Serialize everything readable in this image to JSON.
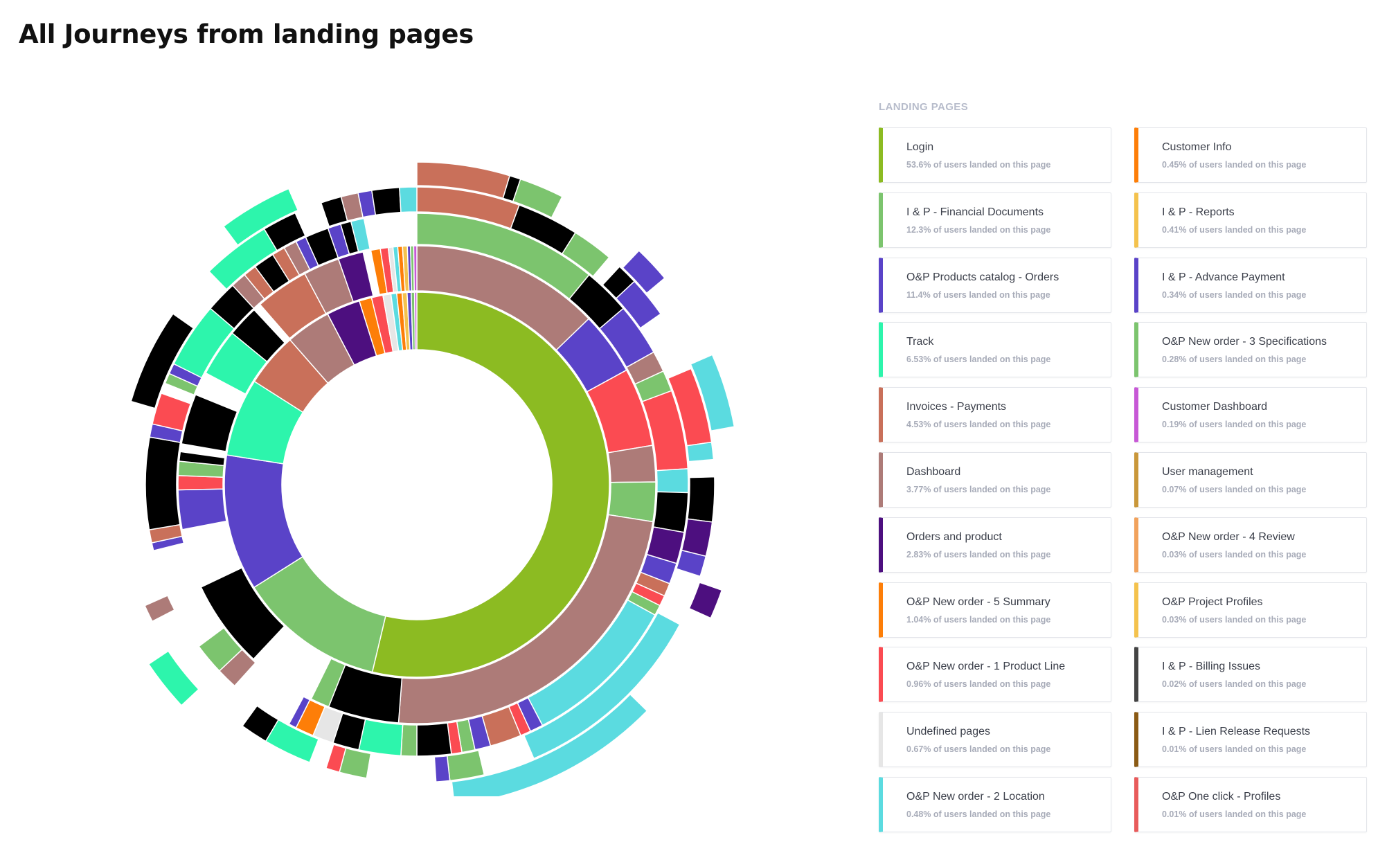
{
  "title": "All Journeys from landing pages",
  "legend_header": "LANDING PAGES",
  "colors": {
    "accent": "#8cbb22",
    "card_border": "#e3e5ea",
    "muted_text": "#a7abb8"
  },
  "landing_pages": [
    {
      "name": "Login",
      "percent": 53.6,
      "desc": "53.6% of users landed on this page",
      "color": "#8cbb22"
    },
    {
      "name": "I & P - Financial Documents",
      "percent": 12.3,
      "desc": "12.3% of users landed on this page",
      "color": "#7cc46e"
    },
    {
      "name": "O&P Products catalog - Orders",
      "percent": 11.4,
      "desc": "11.4% of users landed on this page",
      "color": "#5a43c8"
    },
    {
      "name": "Track",
      "percent": 6.53,
      "desc": "6.53% of users landed on this page",
      "color": "#2df5ac"
    },
    {
      "name": "Invoices - Payments",
      "percent": 4.53,
      "desc": "4.53% of users landed on this page",
      "color": "#c9705a"
    },
    {
      "name": "Dashboard",
      "percent": 3.77,
      "desc": "3.77% of users landed on this page",
      "color": "#ad7b78"
    },
    {
      "name": "Orders and product",
      "percent": 2.83,
      "desc": "2.83% of users landed on this page",
      "color": "#4d0f7f"
    },
    {
      "name": "O&P New order - 5 Summary",
      "percent": 1.04,
      "desc": "1.04% of users landed on this page",
      "color": "#fd7e08"
    },
    {
      "name": "O&P New order - 1 Product Line",
      "percent": 0.96,
      "desc": "0.96% of users landed on this page",
      "color": "#fb4b52"
    },
    {
      "name": "Undefined pages",
      "percent": 0.67,
      "desc": "0.67% of users landed on this page",
      "color": "#e6e6e6"
    },
    {
      "name": "O&P New order - 2 Location",
      "percent": 0.48,
      "desc": "0.48% of users landed on this page",
      "color": "#5bdbe0"
    },
    {
      "name": "Customer Info",
      "percent": 0.45,
      "desc": "0.45% of users landed on this page",
      "color": "#fd7e08"
    },
    {
      "name": "I & P - Reports",
      "percent": 0.41,
      "desc": "0.41% of users landed on this page",
      "color": "#f4c24d"
    },
    {
      "name": "I & P - Advance Payment",
      "percent": 0.34,
      "desc": "0.34% of users landed on this page",
      "color": "#5a43c8"
    },
    {
      "name": "O&P New order - 3 Specifications",
      "percent": 0.28,
      "desc": "0.28% of users landed on this page",
      "color": "#7cc46e"
    },
    {
      "name": "Customer Dashboard",
      "percent": 0.19,
      "desc": "0.19% of users landed on this page",
      "color": "#c758d6"
    },
    {
      "name": "User management",
      "percent": 0.07,
      "desc": "0.07% of users landed on this page",
      "color": "#c9973a"
    },
    {
      "name": "O&P New order - 4 Review",
      "percent": 0.03,
      "desc": "0.03% of users landed on this page",
      "color": "#f1a25c"
    },
    {
      "name": "O&P Project Profiles",
      "percent": 0.03,
      "desc": "0.03% of users landed on this page",
      "color": "#f4c24d"
    },
    {
      "name": "I & P - Billing Issues",
      "percent": 0.02,
      "desc": "0.02% of users landed on this page",
      "color": "#444444"
    },
    {
      "name": "I & P - Lien Release Requests",
      "percent": 0.01,
      "desc": "0.01% of users landed on this page",
      "color": "#8a5a14"
    },
    {
      "name": "O&P One click - Profiles",
      "percent": 0.01,
      "desc": "0.01% of users landed on this page",
      "color": "#e85b5b"
    }
  ],
  "chart_data": {
    "type": "sunburst",
    "title": "All Journeys from landing pages",
    "legend_position": "right",
    "rings": [
      [
        {
          "color": "#8cbb22",
          "value": 53.6
        },
        {
          "color": "#7cc46e",
          "value": 12.3
        },
        {
          "color": "#5a43c8",
          "value": 11.4
        },
        {
          "color": "#2df5ac",
          "value": 6.53
        },
        {
          "color": "#c9705a",
          "value": 4.53
        },
        {
          "color": "#ad7b78",
          "value": 3.77
        },
        {
          "color": "#4d0f7f",
          "value": 2.83
        },
        {
          "color": "#fd7e08",
          "value": 1.04
        },
        {
          "color": "#fb4b52",
          "value": 0.96
        },
        {
          "color": "#e6e6e6",
          "value": 0.67
        },
        {
          "color": "#5bdbe0",
          "value": 0.48
        },
        {
          "color": "#fd7e08",
          "value": 0.45
        },
        {
          "color": "#f4c24d",
          "value": 0.41
        },
        {
          "color": "#5a43c8",
          "value": 0.34
        },
        {
          "color": "#7cc46e",
          "value": 0.28
        },
        {
          "color": "#c758d6",
          "value": 0.19
        }
      ],
      [
        {
          "color": "#ad7b78",
          "value": 12
        },
        {
          "color": "#5a43c8",
          "value": 4
        },
        {
          "color": "#fb4b52",
          "value": 5
        },
        {
          "color": "#ad7b78",
          "value": 2.3
        },
        {
          "color": "#7cc46e",
          "value": 2.5
        },
        {
          "color": "#ad7b78",
          "value": 22.3
        },
        {
          "color": "#000000",
          "value": 4.5
        },
        {
          "color": "#7cc46e",
          "value": 1.2
        },
        {
          "color": "#ffffff",
          "value": 4.4
        },
        {
          "color": "#000000",
          "value": 5.6
        },
        {
          "color": "#ffffff",
          "value": 3.8
        },
        {
          "color": "#5a43c8",
          "value": 2.5
        },
        {
          "color": "#fb4b52",
          "value": 0.9
        },
        {
          "color": "#7cc46e",
          "value": 0.9
        },
        {
          "color": "#000000",
          "value": 0.6
        },
        {
          "color": "#ffffff",
          "value": 0.5
        },
        {
          "color": "#000000",
          "value": 3.2
        },
        {
          "color": "#ffffff",
          "value": 1.5
        },
        {
          "color": "#2df5ac",
          "value": 3.0
        },
        {
          "color": "#000000",
          "value": 2.0
        },
        {
          "color": "#ffffff",
          "value": 0.5
        },
        {
          "color": "#c9705a",
          "value": 3.4
        },
        {
          "color": "#ad7b78",
          "value": 2.3
        },
        {
          "color": "#4d0f7f",
          "value": 1.6
        },
        {
          "color": "#ffffff",
          "value": 0.5
        },
        {
          "color": "#fd7e08",
          "value": 0.6
        },
        {
          "color": "#fb4b52",
          "value": 0.5
        },
        {
          "color": "#e6e6e6",
          "value": 0.3
        },
        {
          "color": "#5bdbe0",
          "value": 0.3
        },
        {
          "color": "#fd7e08",
          "value": 0.3
        },
        {
          "color": "#f4c24d",
          "value": 0.3
        },
        {
          "color": "#5a43c8",
          "value": 0.2
        },
        {
          "color": "#7cc46e",
          "value": 0.2
        },
        {
          "color": "#c758d6",
          "value": 0.2
        }
      ],
      [
        {
          "color": "#7cc46e",
          "value": 7
        },
        {
          "color": "#000000",
          "value": 1.8
        },
        {
          "color": "#5a43c8",
          "value": 2
        },
        {
          "color": "#ad7b78",
          "value": 0.8
        },
        {
          "color": "#7cc46e",
          "value": 0.8
        },
        {
          "color": "#fb4b52",
          "value": 3
        },
        {
          "color": "#5bdbe0",
          "value": 0.9
        },
        {
          "color": "#000000",
          "value": 1.5
        },
        {
          "color": "#4d0f7f",
          "value": 1.2
        },
        {
          "color": "#5a43c8",
          "value": 0.8
        },
        {
          "color": "#c9705a",
          "value": 0.5
        },
        {
          "color": "#fb4b52",
          "value": 0.4
        },
        {
          "color": "#7cc46e",
          "value": 0.4
        },
        {
          "color": "#5bdbe0",
          "value": 6
        },
        {
          "color": "#5a43c8",
          "value": 0.5
        },
        {
          "color": "#fb4b52",
          "value": 0.4
        },
        {
          "color": "#c9705a",
          "value": 1.2
        },
        {
          "color": "#5a43c8",
          "value": 0.6
        },
        {
          "color": "#7cc46e",
          "value": 0.5
        },
        {
          "color": "#fb4b52",
          "value": 0.4
        },
        {
          "color": "#000000",
          "value": 1.3
        },
        {
          "color": "#7cc46e",
          "value": 0.6
        },
        {
          "color": "#2df5ac",
          "value": 1.6
        },
        {
          "color": "#000000",
          "value": 1.0
        },
        {
          "color": "#e6e6e6",
          "value": 0.8
        },
        {
          "color": "#fd7e08",
          "value": 0.7
        },
        {
          "color": "#5a43c8",
          "value": 0.3
        },
        {
          "color": "#ffffff",
          "value": 2.5
        },
        {
          "color": "#ad7b78",
          "value": 0.8
        },
        {
          "color": "#7cc46e",
          "value": 1.2
        },
        {
          "color": "#ffffff",
          "value": 0.5
        },
        {
          "color": "#ffffff",
          "value": 3.5
        },
        {
          "color": "#5a43c8",
          "value": 0.3
        },
        {
          "color": "#c9705a",
          "value": 0.5
        },
        {
          "color": "#000000",
          "value": 3.5
        },
        {
          "color": "#5a43c8",
          "value": 0.5
        },
        {
          "color": "#fb4b52",
          "value": 1.2
        },
        {
          "color": "#ffffff",
          "value": 0.4
        },
        {
          "color": "#7cc46e",
          "value": 0.4
        },
        {
          "color": "#5a43c8",
          "value": 0.4
        },
        {
          "color": "#2df5ac",
          "value": 2.5
        },
        {
          "color": "#000000",
          "value": 1.2
        },
        {
          "color": "#ad7b78",
          "value": 0.6
        },
        {
          "color": "#c9705a",
          "value": 0.5
        },
        {
          "color": "#000000",
          "value": 0.8
        },
        {
          "color": "#c9705a",
          "value": 0.5
        },
        {
          "color": "#ad7b78",
          "value": 0.5
        },
        {
          "color": "#5a43c8",
          "value": 0.4
        },
        {
          "color": "#000000",
          "value": 0.9
        },
        {
          "color": "#5a43c8",
          "value": 0.5
        },
        {
          "color": "#000000",
          "value": 0.4
        },
        {
          "color": "#5bdbe0",
          "value": 0.5
        },
        {
          "color": "#ffffff",
          "value": 2.0
        }
      ],
      [
        {
          "color": "#c9705a",
          "value": 3
        },
        {
          "color": "#000000",
          "value": 1.8
        },
        {
          "color": "#7cc46e",
          "value": 1.2
        },
        {
          "color": "#ffffff",
          "value": 0.4
        },
        {
          "color": "#000000",
          "value": 0.6
        },
        {
          "color": "#5a43c8",
          "value": 1.2
        },
        {
          "color": "#ffffff",
          "value": 1.8
        },
        {
          "color": "#fb4b52",
          "value": 2.2
        },
        {
          "color": "#5bdbe0",
          "value": 0.5
        },
        {
          "color": "#ffffff",
          "value": 0.5
        },
        {
          "color": "#000000",
          "value": 1.3
        },
        {
          "color": "#4d0f7f",
          "value": 1.0
        },
        {
          "color": "#5a43c8",
          "value": 0.6
        },
        {
          "color": "#ffffff",
          "value": 1.5
        },
        {
          "color": "#5bdbe0",
          "value": 5.8
        },
        {
          "color": "#ffffff",
          "value": 1.5
        },
        {
          "color": "#7cc46e",
          "value": 1.0
        },
        {
          "color": "#5a43c8",
          "value": 0.4
        },
        {
          "color": "#ffffff",
          "value": 2.0
        },
        {
          "color": "#7cc46e",
          "value": 0.8
        },
        {
          "color": "#fb4b52",
          "value": 0.4
        },
        {
          "color": "#ffffff",
          "value": 0.5
        },
        {
          "color": "#2df5ac",
          "value": 1.4
        },
        {
          "color": "#000000",
          "value": 0.8
        },
        {
          "color": "#ffffff",
          "value": 4.0
        },
        {
          "color": "#ad7b78",
          "value": 0.5
        },
        {
          "color": "#ffffff",
          "value": 6.0
        },
        {
          "color": "#000000",
          "value": 2.8
        },
        {
          "color": "#ffffff",
          "value": 1.6
        },
        {
          "color": "#2df5ac",
          "value": 2.0
        },
        {
          "color": "#000000",
          "value": 1.0
        },
        {
          "color": "#ffffff",
          "value": 0.8
        },
        {
          "color": "#000000",
          "value": 0.6
        },
        {
          "color": "#ad7b78",
          "value": 0.5
        },
        {
          "color": "#5a43c8",
          "value": 0.4
        },
        {
          "color": "#000000",
          "value": 0.8
        },
        {
          "color": "#5bdbe0",
          "value": 0.5
        }
      ],
      [
        {
          "color": "#c9705a",
          "value": 2.5
        },
        {
          "color": "#000000",
          "value": 0.3
        },
        {
          "color": "#7cc46e",
          "value": 1.2
        },
        {
          "color": "#ffffff",
          "value": 2.5
        },
        {
          "color": "#5a43c8",
          "value": 1.0
        },
        {
          "color": "#ffffff",
          "value": 2.4
        },
        {
          "color": "#5bdbe0",
          "value": 2.0
        },
        {
          "color": "#ffffff",
          "value": 4.4
        },
        {
          "color": "#4d0f7f",
          "value": 0.8
        },
        {
          "color": "#ffffff",
          "value": 3.0
        },
        {
          "color": "#5bdbe0",
          "value": 5.8
        },
        {
          "color": "#ffffff",
          "value": 8.0
        },
        {
          "color": "#2df5ac",
          "value": 1.4
        },
        {
          "color": "#ffffff",
          "value": 13.0
        },
        {
          "color": "#2df5ac",
          "value": 2.0
        },
        {
          "color": "#ffffff",
          "value": 3.5
        }
      ]
    ]
  }
}
